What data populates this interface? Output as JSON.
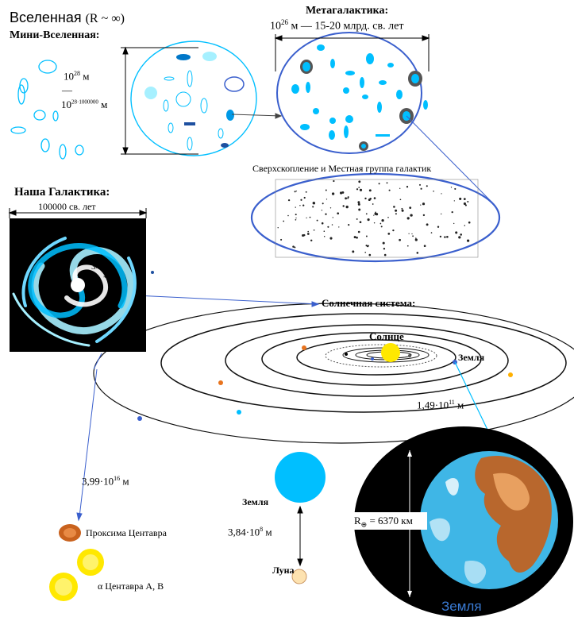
{
  "universe": {
    "title": "Вселенная",
    "title_formula": "(R ~ ∞)",
    "mini_title": "Мини-Вселенная:",
    "size_a_base": "10",
    "size_a_exp": "28",
    "size_a_unit": "м",
    "dash": "—",
    "size_b_base": "10",
    "size_b_exp": "28·1000000",
    "size_b_unit": "м"
  },
  "metagalaxy": {
    "title": "Метагалактика:",
    "size_base": "10",
    "size_exp": "26",
    "size_rest": "м — 15-20 млрд. св. лет"
  },
  "supercluster": {
    "title": "Сверхскопление и Местная группа галактик"
  },
  "galaxy": {
    "title": "Наша Галактика:",
    "size": "100000 св. лет"
  },
  "solar": {
    "title": "Солнечная система:",
    "sun_label": "Солнце",
    "earth_label": "Земля",
    "distance": "1,49·10",
    "distance_exp": "11",
    "distance_unit": "м"
  },
  "stars": {
    "distance": "3,99·10",
    "distance_exp": "16",
    "distance_unit": "м",
    "proxima": "Проксима Центавра",
    "alpha": "α Центавра А, В"
  },
  "earth_moon": {
    "earth_label": "Земля",
    "distance": "3,84·10",
    "distance_exp": "8",
    "distance_unit": "м",
    "moon_label": "Луна"
  },
  "earth_big": {
    "radius_label": "R",
    "radius_sub": "⊕",
    "radius_value": "= 6370 км",
    "caption": "Земля"
  },
  "colors": {
    "cyan": "#00bfff",
    "light_cyan": "#a6f0ff",
    "blue_line": "#3a5fcd",
    "sun": "#ffe800",
    "proxima": "#c9621e"
  }
}
